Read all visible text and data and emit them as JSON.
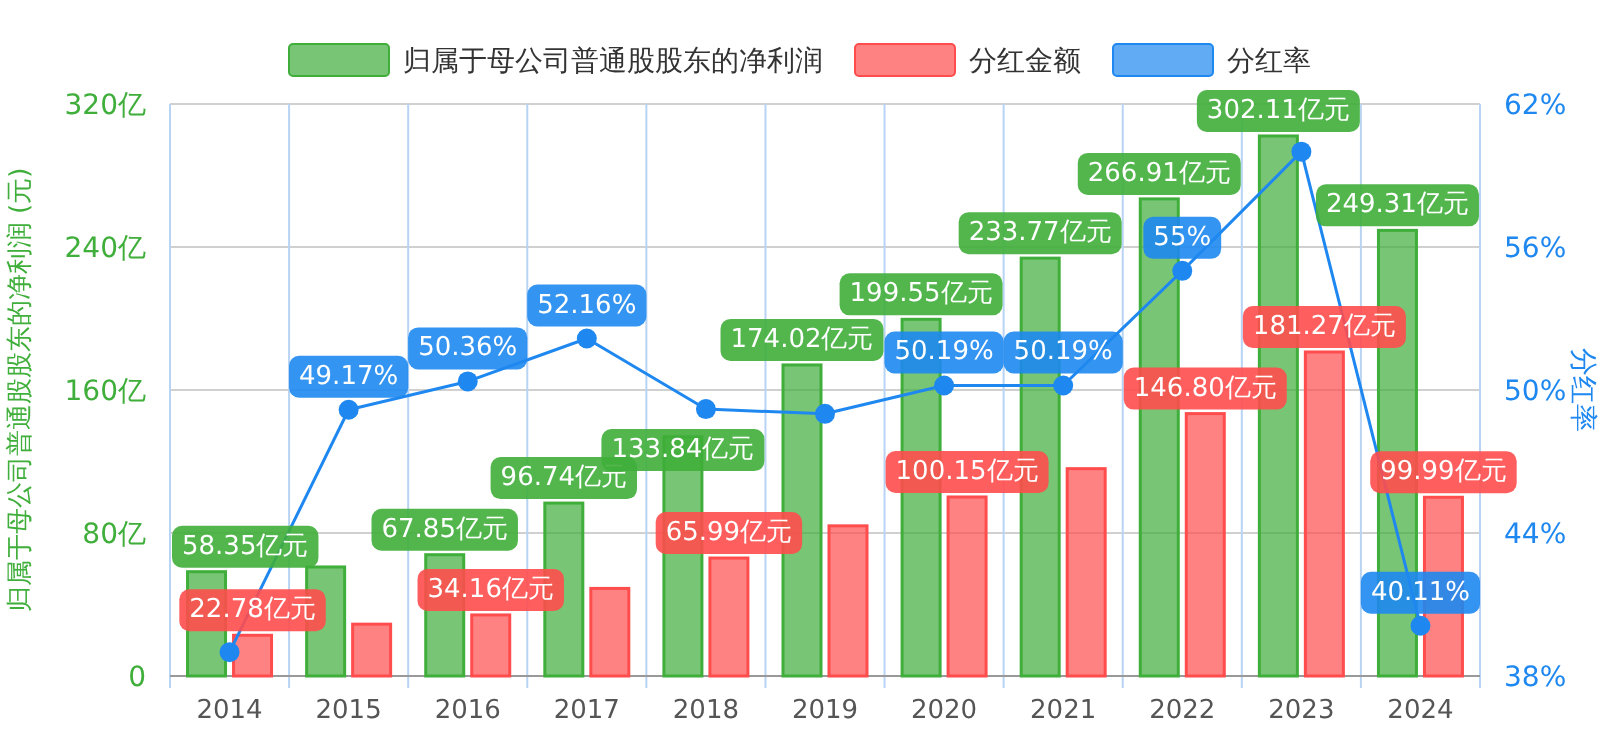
{
  "chart_data": {
    "type": "bar",
    "categories": [
      "2014",
      "2015",
      "2016",
      "2017",
      "2018",
      "2019",
      "2020",
      "2021",
      "2022",
      "2023",
      "2024"
    ],
    "ylabel": "归属于母公司普通股股东的净利润 (元)",
    "y2label": "分红率",
    "ylim": [
      0,
      320
    ],
    "yticks": [
      {
        "value": 0,
        "label": "0"
      },
      {
        "value": 80,
        "label": "80亿"
      },
      {
        "value": 160,
        "label": "160亿"
      },
      {
        "value": 240,
        "label": "240亿"
      },
      {
        "value": 320,
        "label": "320亿"
      }
    ],
    "y2lim": [
      38,
      62
    ],
    "y2ticks": [
      {
        "value": 38,
        "label": "38%"
      },
      {
        "value": 44,
        "label": "44%"
      },
      {
        "value": 50,
        "label": "50%"
      },
      {
        "value": 56,
        "label": "56%"
      },
      {
        "value": 62,
        "label": "62%"
      }
    ],
    "grid": true,
    "legend": "top",
    "series": [
      {
        "name": "归属于母公司普通股股东的净利润",
        "color": "#3fae3a",
        "values": [
          58.35,
          61,
          67.85,
          96.74,
          133.84,
          174.02,
          199.55,
          233.77,
          266.91,
          302.11,
          249.31
        ],
        "value_labels": [
          "58.35亿元",
          null,
          "67.85亿元",
          "96.74亿元",
          "133.84亿元",
          "174.02亿元",
          "199.55亿元",
          "233.77亿元",
          "266.91亿元",
          "302.11亿元",
          "249.31亿元"
        ]
      },
      {
        "name": "分红金额",
        "color": "#ff4d4d",
        "values": [
          22.78,
          29,
          34.16,
          49,
          65.99,
          84,
          100.15,
          116,
          146.8,
          181.27,
          99.99
        ],
        "value_labels": [
          "22.78亿元",
          null,
          "34.16亿元",
          null,
          "65.99亿元",
          null,
          "100.15亿元",
          null,
          "146.80亿元",
          "181.27亿元",
          "99.99亿元"
        ]
      },
      {
        "name": "分红率",
        "type": "line",
        "axis": "y2",
        "marker": "circle",
        "color": "#1e88f0",
        "values": [
          39.0,
          49.17,
          50.36,
          52.16,
          49.2,
          49.0,
          50.19,
          50.19,
          55,
          60.0,
          40.11
        ],
        "value_labels": [
          null,
          "49.17%",
          "50.36%",
          "52.16%",
          null,
          null,
          "50.19%",
          "50.19%",
          "55%",
          null,
          "40.11%"
        ]
      }
    ]
  }
}
